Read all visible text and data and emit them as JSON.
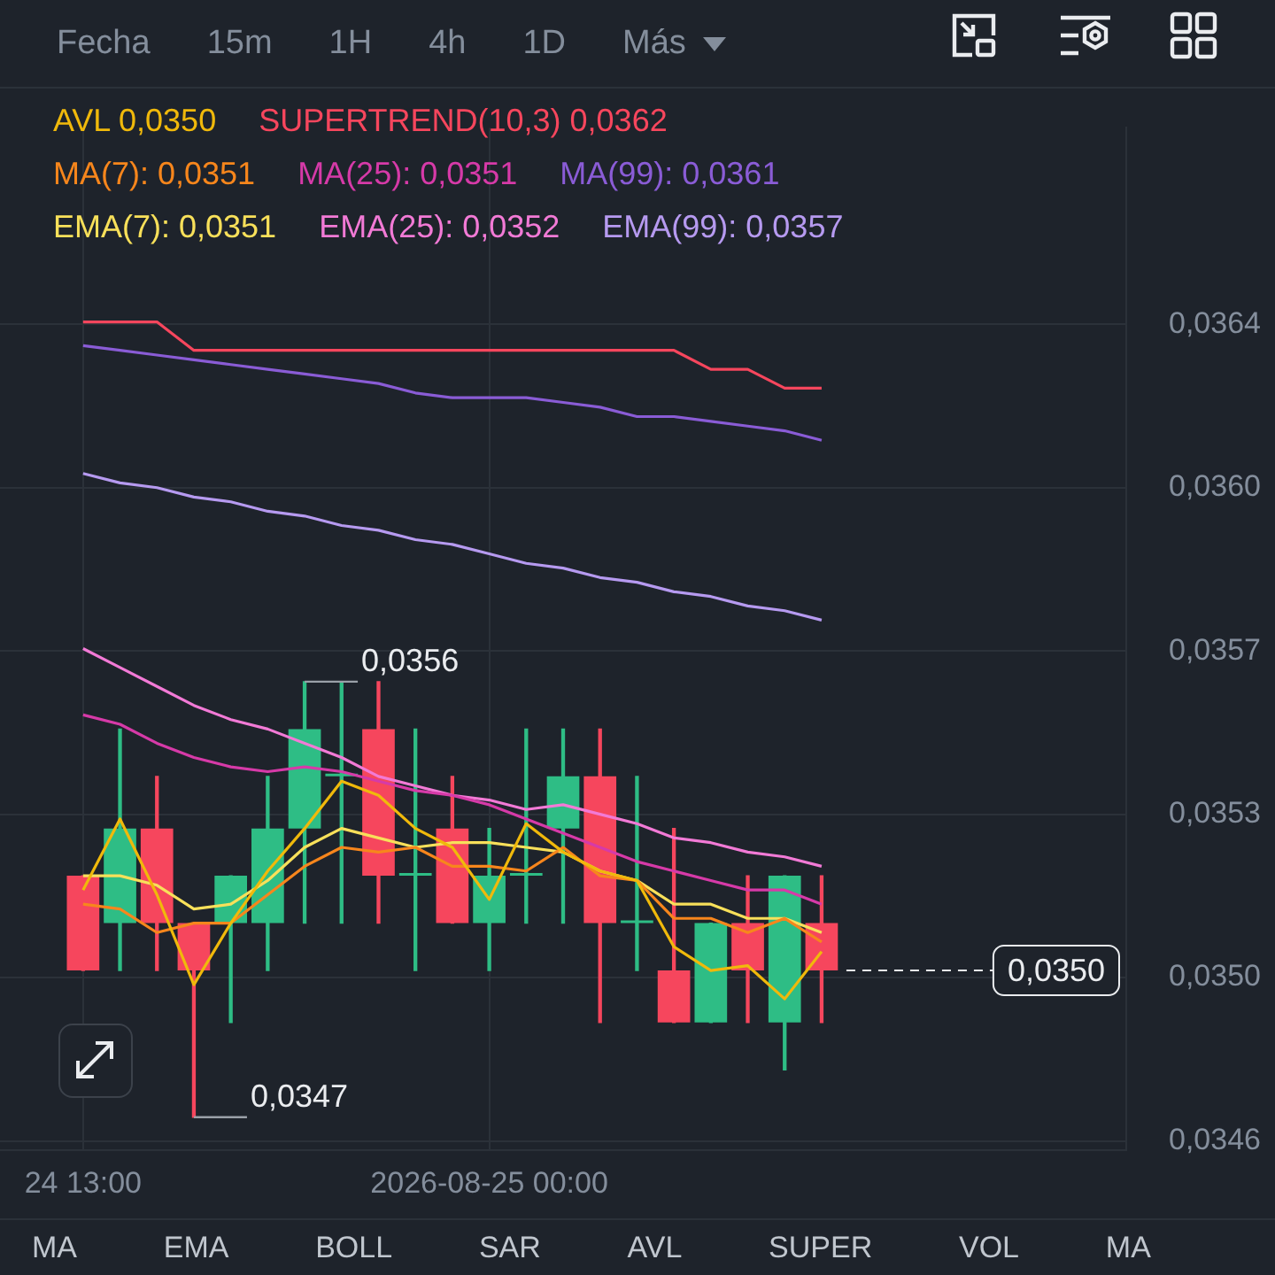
{
  "chart_data": {
    "type": "candlestick",
    "x": [
      "2026-08-24T13:00",
      "2026-08-24T14:00",
      "2026-08-24T15:00",
      "2026-08-24T16:00",
      "2026-08-24T17:00",
      "2026-08-24T18:00",
      "2026-08-24T19:00",
      "2026-08-24T20:00",
      "2026-08-24T21:00",
      "2026-08-24T22:00",
      "2026-08-24T23:00",
      "2026-08-25T00:00",
      "2026-08-25T01:00",
      "2026-08-25T02:00",
      "2026-08-25T03:00",
      "2026-08-25T04:00",
      "2026-08-25T05:00",
      "2026-08-25T06:00",
      "2026-08-25T07:00",
      "2026-08-25T08:00",
      "2026-08-25T09:00"
    ],
    "ohlc": [
      [
        0.0352,
        0.0352,
        0.035,
        0.035
      ],
      [
        0.0351,
        0.03551,
        0.035,
        0.0353
      ],
      [
        0.0353,
        0.03541,
        0.035,
        0.0351
      ],
      [
        0.0351,
        0.0351,
        0.03469,
        0.035
      ],
      [
        0.0351,
        0.0352,
        0.03489,
        0.0352
      ],
      [
        0.0351,
        0.03541,
        0.035,
        0.0353
      ],
      [
        0.0353,
        0.03561,
        0.0351,
        0.03551
      ],
      [
        0.03541,
        0.03561,
        0.0351,
        0.03541
      ],
      [
        0.03551,
        0.03561,
        0.0351,
        0.0352
      ],
      [
        0.0352,
        0.03551,
        0.035,
        0.0352
      ],
      [
        0.0353,
        0.03541,
        0.0351,
        0.0351
      ],
      [
        0.0351,
        0.0353,
        0.035,
        0.0352
      ],
      [
        0.0352,
        0.03551,
        0.0351,
        0.0352
      ],
      [
        0.0353,
        0.03551,
        0.0351,
        0.03541
      ],
      [
        0.03541,
        0.03551,
        0.03489,
        0.0351
      ],
      [
        0.0351,
        0.03541,
        0.035,
        0.0351
      ],
      [
        0.035,
        0.0353,
        0.03489,
        0.03489
      ],
      [
        0.03489,
        0.0351,
        0.03489,
        0.0351
      ],
      [
        0.0351,
        0.0352,
        0.03489,
        0.035
      ],
      [
        0.03489,
        0.0352,
        0.03479,
        0.0352
      ],
      [
        0.0351,
        0.0352,
        0.03489,
        0.035
      ]
    ],
    "colors": [
      "#f6465d",
      "#2ebd85",
      "#f6465d",
      "#f6465d",
      "#2ebd85",
      "#2ebd85",
      "#2ebd85",
      "#2ebd85",
      "#f6465d",
      "#2ebd85",
      "#f6465d",
      "#2ebd85",
      "#2ebd85",
      "#2ebd85",
      "#f6465d",
      "#2ebd85",
      "#f6465d",
      "#2ebd85",
      "#f6465d",
      "#2ebd85",
      "#f6465d"
    ],
    "series": [
      {
        "name": "AVL 0,0350",
        "type": "line",
        "color": "#f0b90b",
        "values": [
          0.03517,
          0.03532,
          0.03516,
          0.03497,
          0.0351,
          0.03521,
          0.0353,
          0.0354,
          0.03537,
          0.0353,
          0.03526,
          0.03515,
          0.03531,
          0.03525,
          0.03521,
          0.03519,
          0.03505,
          0.035,
          0.03501,
          0.03494,
          0.03504
        ]
      },
      {
        "name": "SUPERTREND(10,3) 0,0362",
        "type": "line",
        "color": "#f6465d",
        "values": [
          0.03637,
          0.03637,
          0.03637,
          0.03631,
          0.03631,
          0.03631,
          0.03631,
          0.03631,
          0.03631,
          0.03631,
          0.03631,
          0.03631,
          0.03631,
          0.03631,
          0.03631,
          0.03631,
          0.03631,
          0.03627,
          0.03627,
          0.03623,
          0.03623
        ]
      },
      {
        "name": "MA(7): 0,0351",
        "type": "line",
        "color": "#f7861c",
        "values": [
          0.03514,
          0.03513,
          0.03508,
          0.0351,
          0.0351,
          0.03516,
          0.03522,
          0.03526,
          0.03525,
          0.03526,
          0.03522,
          0.03522,
          0.03521,
          0.03526,
          0.0352,
          0.03519,
          0.03511,
          0.03511,
          0.03508,
          0.03511,
          0.03506
        ]
      },
      {
        "name": "MA(25): 0,0351",
        "type": "line",
        "color": "#d63aa8",
        "values": [
          0.03554,
          0.03552,
          0.03548,
          0.03545,
          0.03543,
          0.03542,
          0.03543,
          0.03542,
          0.0354,
          0.03538,
          0.03537,
          0.03535,
          0.03532,
          0.03529,
          0.03526,
          0.03523,
          0.03521,
          0.03519,
          0.03517,
          0.03517,
          0.03514
        ]
      },
      {
        "name": "MA(99): 0,0361",
        "type": "line",
        "color": "#8a5cd6",
        "values": [
          0.03632,
          0.03631,
          0.0363,
          0.03629,
          0.03628,
          0.03627,
          0.03626,
          0.03625,
          0.03624,
          0.03622,
          0.03621,
          0.03621,
          0.03621,
          0.0362,
          0.03619,
          0.03617,
          0.03617,
          0.03616,
          0.03615,
          0.03614,
          0.03612
        ]
      },
      {
        "name": "EMA(7): 0,0351",
        "type": "line",
        "color": "#f8e05a",
        "values": [
          0.0352,
          0.0352,
          0.03518,
          0.03513,
          0.03514,
          0.03519,
          0.03526,
          0.0353,
          0.03528,
          0.03526,
          0.03527,
          0.03527,
          0.03526,
          0.03525,
          0.03521,
          0.03519,
          0.03514,
          0.03514,
          0.03511,
          0.03511,
          0.03508
        ]
      },
      {
        "name": "EMA(25): 0,0352",
        "type": "line",
        "color": "#f27ad6",
        "values": [
          0.03568,
          0.03564,
          0.0356,
          0.03556,
          0.03553,
          0.03551,
          0.03548,
          0.03545,
          0.03541,
          0.03539,
          0.03537,
          0.03536,
          0.03534,
          0.03535,
          0.03533,
          0.03531,
          0.03528,
          0.03527,
          0.03525,
          0.03524,
          0.03522
        ]
      },
      {
        "name": "EMA(99): 0,0357",
        "type": "line",
        "color": "#b69af0",
        "values": [
          0.03605,
          0.03603,
          0.03602,
          0.036,
          0.03599,
          0.03597,
          0.03596,
          0.03594,
          0.03593,
          0.03591,
          0.0359,
          0.03588,
          0.03586,
          0.03585,
          0.03583,
          0.03582,
          0.0358,
          0.03579,
          0.03577,
          0.03576,
          0.03574
        ]
      }
    ],
    "xlim": [
      "2026-08-24T10:45",
      "2026-08-25T17:15"
    ],
    "xticks": [
      {
        "value": "2026-08-24T13:00",
        "label": "24 13:00"
      },
      {
        "value": "2026-08-25T00:00",
        "label": "2026-08-25 00:00"
      }
    ],
    "ylim": [
      0.03462,
      0.03678
    ],
    "yticks": [
      {
        "value": 0.03464,
        "label": "0,0346"
      },
      {
        "value": 0.034985,
        "label": "0,0350"
      },
      {
        "value": 0.03533,
        "label": "0,0353"
      },
      {
        "value": 0.035675,
        "label": "0,0357"
      },
      {
        "value": 0.03602,
        "label": "0,0360"
      },
      {
        "value": 0.036365,
        "label": "0,0364"
      }
    ],
    "grid": true,
    "legend": "top left",
    "ref_lines": [
      {
        "axis": "y",
        "value": 0.035,
        "label": "0,0350",
        "line_style": "dashed",
        "color": "#eaecef"
      }
    ],
    "annotations": [
      "Fecha 15m 1H 4h 1D Más",
      {
        "text": "0,0356",
        "x": "2026-08-24T19:00",
        "y": 0.03561
      },
      {
        "text": "0,0347",
        "x": "2026-08-24T16:00",
        "y": 0.03469
      },
      "MA EMA BOLL SAR AVL SUPER VOL MA"
    ]
  }
}
